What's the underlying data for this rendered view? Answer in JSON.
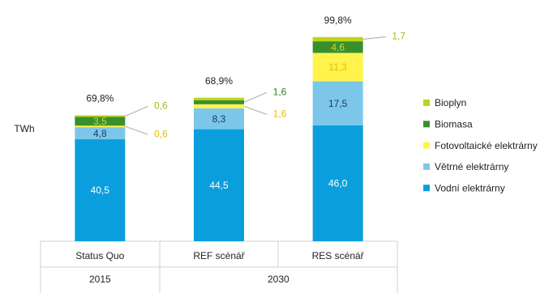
{
  "chart_data": {
    "type": "stacked-bar",
    "y_label": "TWh",
    "categories": [
      "Status Quo",
      "REF scénář",
      "RES scénář"
    ],
    "groups": [
      {
        "name": "2015",
        "categories": 1
      },
      {
        "name": "2030",
        "categories": 2
      }
    ],
    "annotations": [
      "69,8%",
      "68,9%",
      "99,8%"
    ],
    "ylim": [
      0,
      82
    ],
    "series": [
      {
        "name": "Vodní elektrárny",
        "color": "#0a9fdc",
        "label_color": "#ffffff",
        "values": [
          40.5,
          44.5,
          46.0
        ],
        "value_labels": [
          "40,5",
          "44,5",
          "46,0"
        ]
      },
      {
        "name": "Větrné elektrárny",
        "color": "#7cc7e9",
        "label_color": "#1f3864",
        "values": [
          4.8,
          8.3,
          17.5
        ],
        "value_labels": [
          "4,8",
          "8,3",
          "17,5"
        ]
      },
      {
        "name": "Fotovoltaické elektrárny",
        "color": "#fff34c",
        "label_color": "#e3bd00",
        "values": [
          0.6,
          1.6,
          11.3
        ],
        "value_labels": [
          "0,6",
          "1,6",
          "11,3"
        ]
      },
      {
        "name": "Biomasa",
        "color": "#3a8f2d",
        "label_color": "#c7dc3a",
        "callout_color": "#2f7d24",
        "values": [
          3.5,
          1.6,
          4.6
        ],
        "value_labels": [
          "3,5",
          "1,6",
          "4,6"
        ]
      },
      {
        "name": "Bioplyn",
        "color": "#bcd41a",
        "label_color": "#9bbb1b",
        "values": [
          0.6,
          1.0,
          1.7
        ],
        "value_labels": [
          "0,6",
          null,
          "1,7"
        ]
      }
    ]
  }
}
